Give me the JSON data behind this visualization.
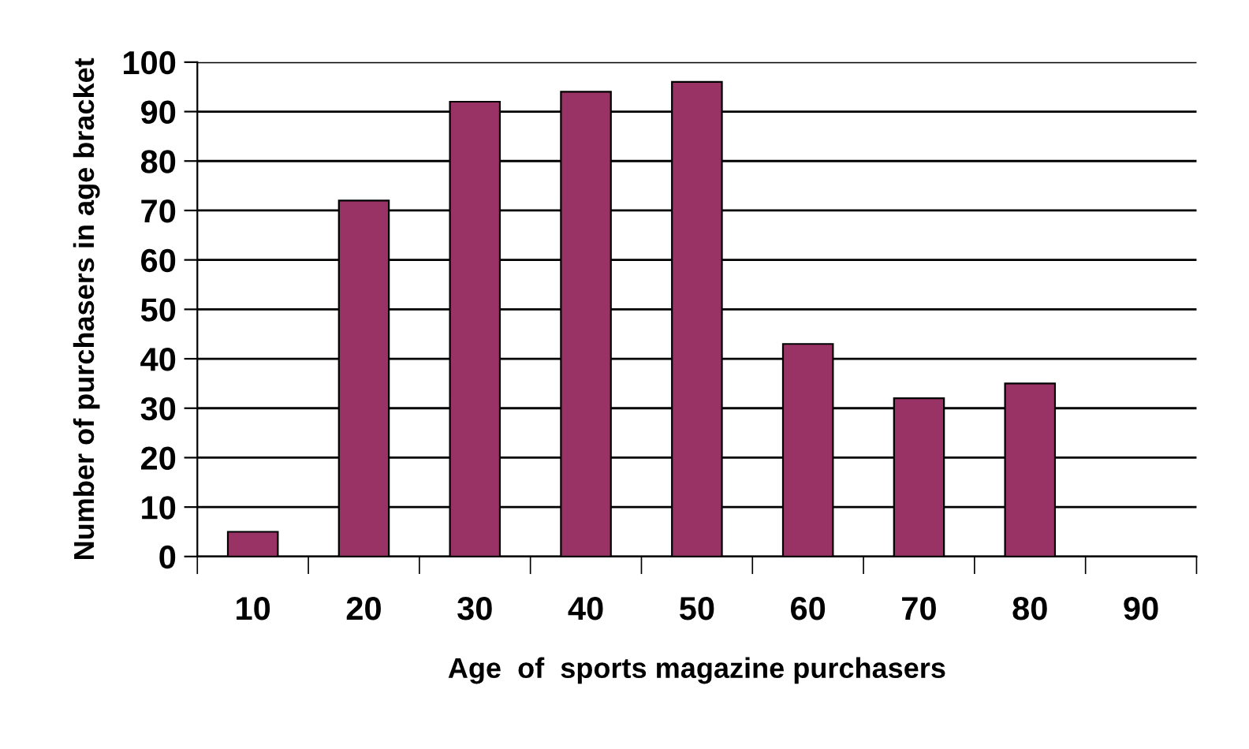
{
  "chart_data": {
    "type": "bar",
    "xlabel": "Age  of  sports magazine purchasers",
    "ylabel": "Number of purchasers in age bracket",
    "categories": [
      "10",
      "20",
      "30",
      "40",
      "50",
      "60",
      "70",
      "80",
      "90"
    ],
    "series": [
      {
        "color": "#993366",
        "values": [
          5,
          72,
          92,
          94,
          96,
          43,
          32,
          35,
          null
        ]
      }
    ],
    "ylim": [
      0,
      100
    ],
    "yticks": [
      0,
      10,
      20,
      30,
      40,
      50,
      60,
      70,
      80,
      90,
      100
    ],
    "grid": "y"
  }
}
